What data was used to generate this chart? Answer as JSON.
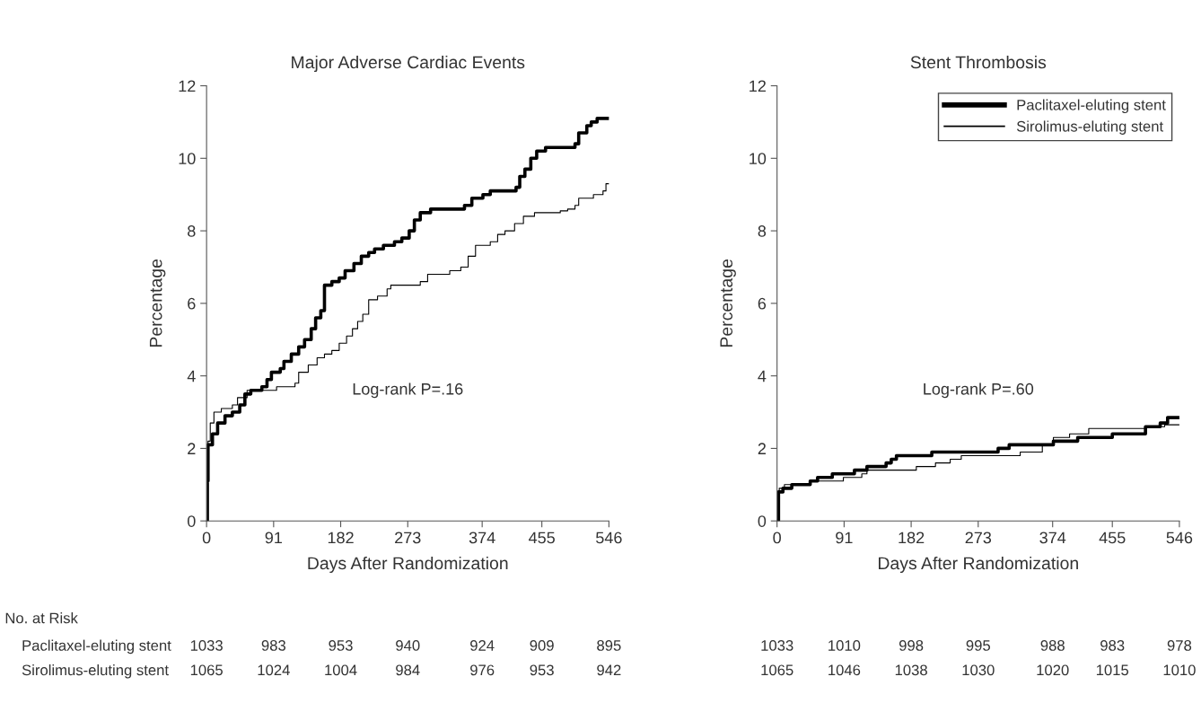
{
  "chart_data": [
    {
      "type": "step",
      "title": "Major Adverse Cardiac Events",
      "xlabel": "Days After Randomization",
      "ylabel": "Percentage",
      "xlim": [
        0,
        546
      ],
      "xticks": [
        0,
        91,
        182,
        273,
        374,
        455,
        546
      ],
      "ylim": [
        0,
        12
      ],
      "yticks": [
        0,
        2,
        4,
        6,
        8,
        10,
        12
      ],
      "grid": false,
      "legend": false,
      "series": [
        {
          "color": "#000000",
          "x": [
            0,
            1,
            2,
            8,
            15,
            25,
            35,
            45,
            52,
            60,
            75,
            82,
            88,
            100,
            105,
            115,
            125,
            133,
            142,
            148,
            155,
            160,
            170,
            180,
            188,
            200,
            210,
            220,
            228,
            240,
            255,
            265,
            275,
            282,
            290,
            304,
            350,
            360,
            375,
            385,
            420,
            425,
            432,
            440,
            448,
            460,
            500,
            505,
            516,
            522,
            530,
            546
          ],
          "values": [
            0,
            1.1,
            2.1,
            2.4,
            2.7,
            2.9,
            3.0,
            3.2,
            3.5,
            3.6,
            3.7,
            3.9,
            4.1,
            4.2,
            4.4,
            4.6,
            4.8,
            5.0,
            5.3,
            5.6,
            5.8,
            6.5,
            6.6,
            6.7,
            6.9,
            7.1,
            7.3,
            7.4,
            7.5,
            7.6,
            7.7,
            7.8,
            8.0,
            8.3,
            8.5,
            8.6,
            8.7,
            8.9,
            9.0,
            9.1,
            9.2,
            9.5,
            9.7,
            10.0,
            10.2,
            10.3,
            10.4,
            10.7,
            10.9,
            11.0,
            11.1,
            11.1
          ]
        },
        {
          "color": "#000000",
          "x": [
            0,
            2,
            5,
            10,
            20,
            35,
            42,
            55,
            95,
            120,
            125,
            138,
            150,
            160,
            170,
            180,
            190,
            198,
            205,
            212,
            220,
            232,
            245,
            250,
            290,
            300,
            330,
            345,
            355,
            365,
            385,
            395,
            405,
            418,
            430,
            445,
            480,
            490,
            500,
            505,
            525,
            538,
            542,
            546
          ],
          "values": [
            0,
            2.2,
            2.7,
            3.0,
            3.1,
            3.2,
            3.4,
            3.6,
            3.7,
            3.8,
            4.1,
            4.3,
            4.5,
            4.6,
            4.7,
            4.9,
            5.1,
            5.3,
            5.5,
            5.7,
            6.1,
            6.2,
            6.4,
            6.5,
            6.6,
            6.8,
            6.9,
            7.0,
            7.3,
            7.6,
            7.7,
            7.9,
            8.0,
            8.2,
            8.4,
            8.5,
            8.55,
            8.6,
            8.7,
            8.9,
            9.0,
            9.1,
            9.3,
            9.3
          ]
        }
      ],
      "annotations": [
        "Log-rank P=.16",
        "No. at Risk",
        "Paclitaxel-eluting stent",
        "1033",
        "983",
        "953",
        "940",
        "924",
        "909",
        "895",
        "Sirolimus-eluting stent",
        "1065",
        "1024",
        "1004",
        "984",
        "976",
        "953",
        "942"
      ]
    },
    {
      "type": "step",
      "title": "Stent Thrombosis",
      "xlabel": "Days After Randomization",
      "ylabel": "Percentage",
      "xlim": [
        0,
        546
      ],
      "xticks": [
        0,
        91,
        182,
        273,
        374,
        455,
        546
      ],
      "ylim": [
        0,
        12
      ],
      "yticks": [
        0,
        2,
        4,
        6,
        8,
        10,
        12
      ],
      "grid": false,
      "legend": "top right",
      "series": [
        {
          "name": "Paclitaxel-eluting stent",
          "color": "#000000",
          "x": [
            0,
            2,
            8,
            20,
            45,
            55,
            75,
            105,
            122,
            148,
            155,
            162,
            210,
            300,
            315,
            375,
            408,
            455,
            500,
            520,
            530,
            546
          ],
          "values": [
            0,
            0.8,
            0.9,
            1.0,
            1.1,
            1.2,
            1.3,
            1.4,
            1.5,
            1.6,
            1.7,
            1.8,
            1.9,
            2.0,
            2.1,
            2.2,
            2.3,
            2.4,
            2.6,
            2.7,
            2.85,
            2.85
          ]
        },
        {
          "name": "Sirolimus-eluting stent",
          "color": "#000000",
          "x": [
            0,
            3,
            10,
            45,
            90,
            115,
            122,
            189,
            215,
            235,
            250,
            330,
            360,
            375,
            397,
            423,
            500,
            526,
            546
          ],
          "values": [
            0,
            0.9,
            1.0,
            1.1,
            1.2,
            1.3,
            1.4,
            1.5,
            1.6,
            1.7,
            1.8,
            1.9,
            2.1,
            2.3,
            2.4,
            2.55,
            2.6,
            2.65,
            2.65
          ]
        }
      ],
      "annotations": [
        "Log-rank P=.60",
        "1033",
        "1010",
        "998",
        "995",
        "988",
        "983",
        "978",
        "1065",
        "1046",
        "1038",
        "1030",
        "1020",
        "1015",
        "1010"
      ]
    }
  ]
}
